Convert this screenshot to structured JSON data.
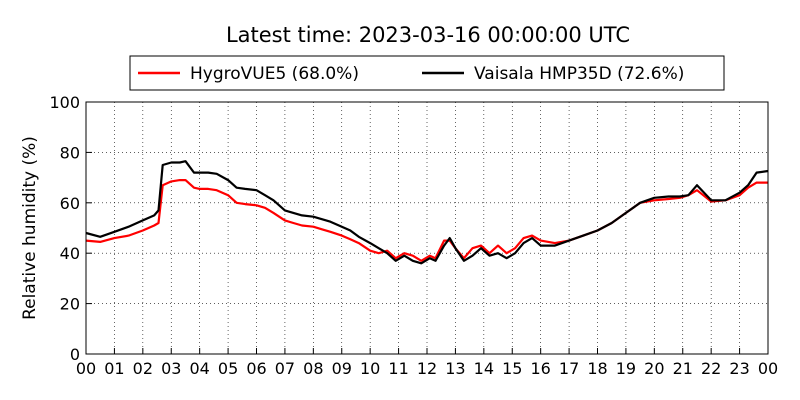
{
  "chart_data": {
    "type": "line",
    "title": "Latest time: 2023-03-16 00:00:00 UTC",
    "xlabel": "",
    "ylabel": "Relative humidity (%)",
    "xlim": [
      0,
      24
    ],
    "ylim": [
      0,
      100
    ],
    "grid": true,
    "legend_position": "top-center",
    "x_tick_labels": [
      "00",
      "01",
      "02",
      "03",
      "04",
      "05",
      "06",
      "07",
      "08",
      "09",
      "10",
      "11",
      "12",
      "13",
      "14",
      "15",
      "16",
      "17",
      "18",
      "19",
      "20",
      "21",
      "22",
      "23",
      "00"
    ],
    "y_ticks": [
      0,
      20,
      40,
      60,
      80,
      100
    ],
    "x": [
      0,
      0.5,
      1,
      1.5,
      2,
      2.4,
      2.55,
      2.7,
      3,
      3.3,
      3.5,
      3.8,
      4,
      4.3,
      4.6,
      5,
      5.3,
      5.6,
      6,
      6.3,
      6.6,
      7,
      7.3,
      7.6,
      8,
      8.3,
      8.6,
      9,
      9.3,
      9.6,
      10,
      10.3,
      10.6,
      10.9,
      11.2,
      11.5,
      11.8,
      12.1,
      12.3,
      12.6,
      12.8,
      13,
      13.3,
      13.6,
      13.9,
      14.2,
      14.5,
      14.8,
      15.1,
      15.4,
      15.7,
      16,
      16.5,
      17,
      17.5,
      18,
      18.5,
      19,
      19.5,
      20,
      20.5,
      20.9,
      21.2,
      21.5,
      22,
      22.5,
      23,
      23.3,
      23.6,
      24
    ],
    "series": [
      {
        "name": "HygroVUE5 (68.0%)",
        "color": "#ff0000",
        "values": [
          45,
          44.5,
          46,
          47,
          49,
          51,
          52,
          67,
          68.5,
          69,
          69,
          66,
          65.5,
          65.5,
          65,
          63,
          60,
          59.5,
          59,
          58,
          56,
          53,
          52,
          51,
          50.5,
          49.5,
          48.5,
          47,
          45.5,
          44,
          41,
          40,
          41,
          38,
          40,
          39,
          37,
          39,
          38,
          45,
          45,
          42,
          38,
          42,
          43,
          40,
          43,
          40,
          42,
          46,
          47,
          45,
          44,
          45,
          47,
          49,
          52,
          56,
          60,
          61,
          61.5,
          62,
          63,
          65,
          60.5,
          61,
          63,
          66,
          68,
          68
        ],
        "values_label": "68.0%"
      },
      {
        "name": "Vaisala HMP35D (72.6%)",
        "color": "#000000",
        "values": [
          48,
          46.5,
          48.5,
          50.5,
          53,
          55,
          57,
          75,
          76,
          76,
          76.5,
          72,
          72,
          72,
          71.5,
          69,
          66,
          65.5,
          65,
          63,
          61,
          57,
          56,
          55,
          54.5,
          53.5,
          52.5,
          50.5,
          49,
          46.5,
          44,
          42,
          40,
          37,
          39,
          37,
          36,
          38,
          37,
          43,
          46,
          42,
          37,
          39,
          42,
          39,
          40,
          38,
          40,
          44,
          46,
          43,
          43,
          45,
          47,
          49,
          52,
          56,
          60,
          62,
          62.5,
          62.5,
          63,
          67,
          61,
          61,
          64,
          67,
          72,
          72.6
        ],
        "values_label": "72.6%"
      }
    ]
  }
}
